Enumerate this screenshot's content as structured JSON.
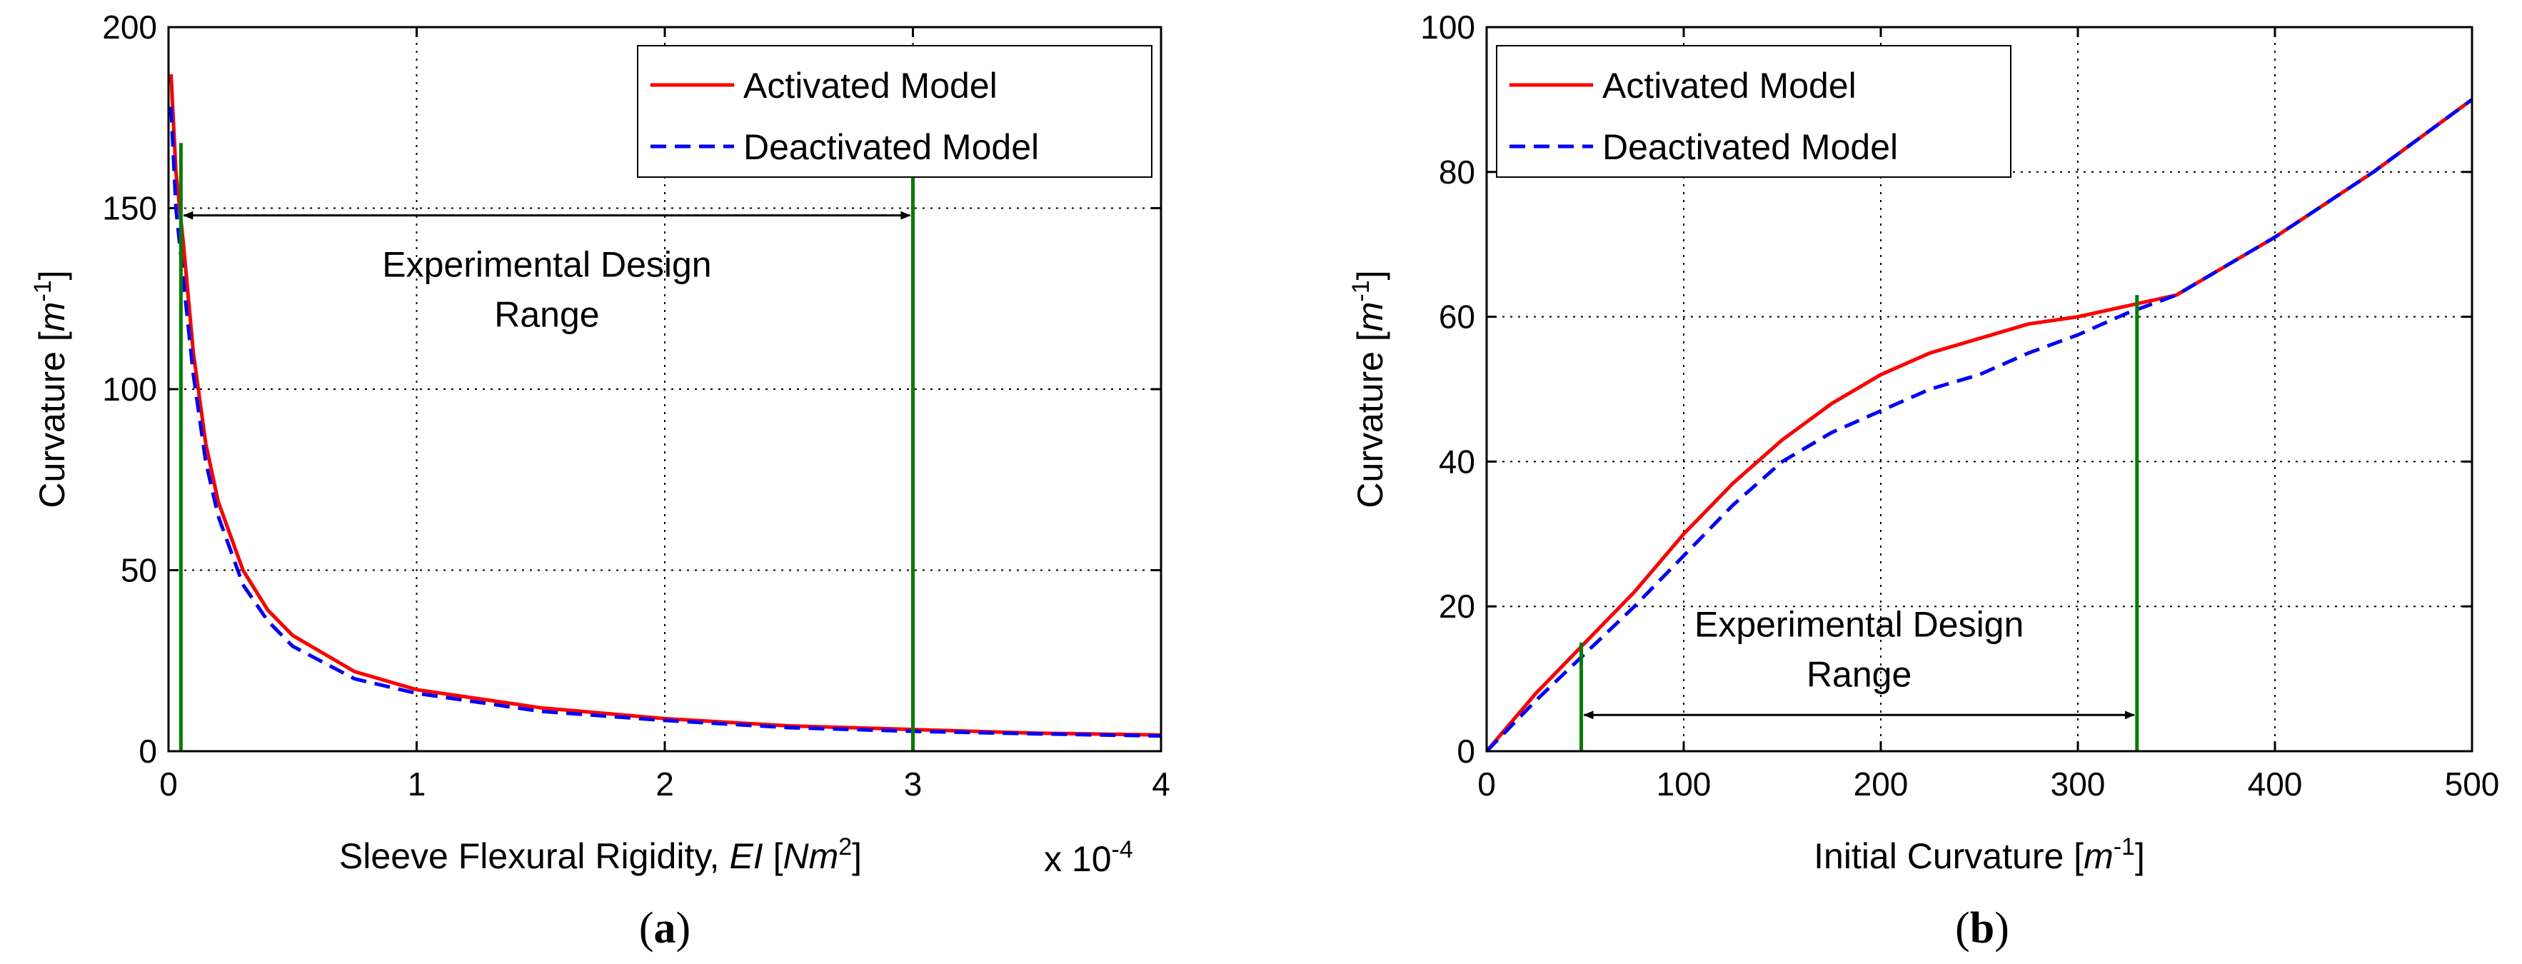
{
  "chart_data": [
    {
      "type": "line",
      "panel_label": "a",
      "xlabel_prefix": "Sleeve Flexural Rigidity, ",
      "xlabel_var": "EI",
      "xlabel_unit": "Nm",
      "xlabel_unit_sup": "2",
      "x_multiplier": "x 10",
      "x_multiplier_exp": "-4",
      "ylabel": "Curvature [m",
      "ylabel_var": "m",
      "ylabel_sup": "-1",
      "xlim": [
        0,
        4
      ],
      "ylim": [
        0,
        200
      ],
      "xticks": [
        0,
        1,
        2,
        3,
        4
      ],
      "yticks": [
        0,
        50,
        100,
        150,
        200
      ],
      "grid": true,
      "legend_position": "top-right",
      "series": [
        {
          "name": "Activated Model",
          "color": "#ff0000",
          "style": "solid",
          "x": [
            0.01,
            0.03,
            0.06,
            0.1,
            0.15,
            0.2,
            0.3,
            0.4,
            0.5,
            0.75,
            1.0,
            1.5,
            2.0,
            2.5,
            3.0,
            3.5,
            4.0
          ],
          "y": [
            187,
            160,
            140,
            110,
            85,
            69,
            50,
            39,
            32,
            22,
            17,
            12,
            9,
            7,
            6,
            5,
            4.5
          ]
        },
        {
          "name": "Deactivated Model",
          "color": "#0000ff",
          "style": "dashed",
          "x": [
            0.01,
            0.03,
            0.06,
            0.1,
            0.15,
            0.2,
            0.3,
            0.4,
            0.5,
            0.75,
            1.0,
            1.5,
            2.0,
            2.5,
            3.0,
            3.5,
            4.0
          ],
          "y": [
            178,
            150,
            130,
            104,
            80,
            65,
            46,
            36,
            29,
            20,
            16,
            11,
            8.5,
            6.5,
            5.5,
            4.8,
            4.2
          ]
        }
      ],
      "design_range": {
        "label_line1": "Experimental Design",
        "label_line2": "Range",
        "x_start": 0.05,
        "x_end": 3.0,
        "arrow_y": 148,
        "line_color": "#008000",
        "left_line_top": 168,
        "right_line_top": 160
      }
    },
    {
      "type": "line",
      "panel_label": "b",
      "xlabel": "Initial Curvature [",
      "xlabel_var": "m",
      "xlabel_sup": "-1",
      "ylabel": "Curvature [m",
      "ylabel_var": "m",
      "ylabel_sup": "-1",
      "xlim": [
        0,
        500
      ],
      "ylim": [
        0,
        100
      ],
      "xticks": [
        0,
        100,
        200,
        300,
        400,
        500
      ],
      "yticks": [
        0,
        20,
        40,
        60,
        80,
        100
      ],
      "grid": true,
      "legend_position": "top-left",
      "series": [
        {
          "name": "Activated Model",
          "color": "#ff0000",
          "style": "solid",
          "x": [
            0,
            25,
            50,
            75,
            100,
            125,
            150,
            175,
            200,
            225,
            250,
            275,
            300,
            325,
            350,
            375,
            400,
            425,
            450,
            475,
            500
          ],
          "y": [
            0,
            8,
            15,
            22,
            30,
            37,
            43,
            48,
            52,
            55,
            57,
            59,
            60,
            61.5,
            63,
            67,
            71,
            75.5,
            80,
            85,
            90
          ]
        },
        {
          "name": "Deactivated Model",
          "color": "#0000ff",
          "style": "dashed",
          "x": [
            0,
            25,
            50,
            75,
            100,
            125,
            150,
            175,
            200,
            225,
            250,
            275,
            300,
            325,
            350,
            375,
            400,
            425,
            450,
            475,
            500
          ],
          "y": [
            0,
            7,
            13.5,
            20,
            27,
            34,
            40,
            44,
            47,
            50,
            52,
            55,
            57.5,
            60.5,
            63,
            67,
            71,
            75.5,
            80,
            85,
            90
          ]
        }
      ],
      "design_range": {
        "label_line1": "Experimental Design",
        "label_line2": "Range",
        "x_start": 48,
        "x_end": 330,
        "arrow_y": 5,
        "line_color": "#008000",
        "left_line_top": 15,
        "right_line_top": 63
      }
    }
  ]
}
